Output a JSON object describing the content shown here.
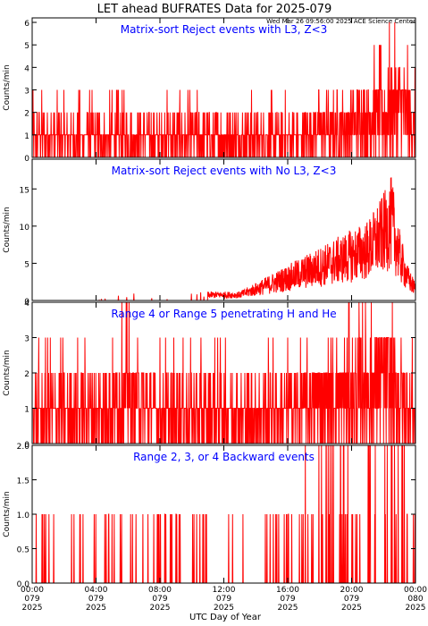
{
  "header": {
    "title": "LET ahead BUFRATES Data for 2025-079",
    "timestamp": "Wed Mar 26 09:56:00 2025 ACE Science Center"
  },
  "colors": {
    "trace": "#ff0000",
    "panel_title": "#0000ff",
    "axis": "#000000"
  },
  "x_axis": {
    "label": "UTC Day of Year",
    "ticks": [
      {
        "hour": 0,
        "lines": [
          "00:00",
          "079",
          "2025"
        ]
      },
      {
        "hour": 4,
        "lines": [
          "04:00",
          "079",
          "2025"
        ]
      },
      {
        "hour": 8,
        "lines": [
          "08:00",
          "079",
          "2025"
        ]
      },
      {
        "hour": 12,
        "lines": [
          "12:00",
          "079",
          "2025"
        ]
      },
      {
        "hour": 16,
        "lines": [
          "16:00",
          "079",
          "2025"
        ]
      },
      {
        "hour": 20,
        "lines": [
          "20:00",
          "079",
          "2025"
        ]
      },
      {
        "hour": 24,
        "lines": [
          "00:00",
          "080",
          "2025"
        ]
      }
    ]
  },
  "chart_data": [
    {
      "type": "line",
      "title": "Matrix-sort Reject events with L3, Z<3",
      "ylabel": "Counts/min",
      "ylim": [
        0,
        6.2
      ],
      "yticks": [
        0,
        1,
        2,
        3,
        4,
        5,
        6
      ],
      "ytick_labels": [
        "0",
        "1",
        "2",
        "3",
        "4",
        "5",
        "6"
      ],
      "x_units": "hours of day 079",
      "series": [
        {
          "x": [
            0,
            1,
            2,
            3,
            4,
            5,
            6,
            7,
            8,
            9,
            10,
            11,
            12,
            13,
            14,
            15,
            16,
            17,
            18,
            19,
            20,
            21,
            22,
            23,
            24
          ],
          "values": [
            2,
            2,
            2,
            2,
            2,
            2,
            2,
            2,
            2,
            2,
            2,
            2,
            2,
            2,
            2,
            2,
            2,
            2,
            3,
            3,
            3,
            4,
            4,
            5,
            3
          ]
        }
      ]
    },
    {
      "type": "line",
      "title": "Matrix-sort Reject events with No L3, Z<3",
      "ylabel": "Counts/min",
      "ylim": [
        0,
        19
      ],
      "yticks": [
        0,
        5,
        10,
        15
      ],
      "ytick_labels": [
        "0",
        "5",
        "10",
        "15"
      ],
      "x_units": "hours of day 079",
      "series": [
        {
          "x": [
            0,
            2,
            4,
            6,
            8,
            10,
            12,
            13,
            14,
            15,
            16,
            17,
            18,
            19,
            20,
            21,
            22,
            22.5,
            23,
            23.5,
            24
          ],
          "values": [
            0,
            0,
            0,
            1,
            0,
            1,
            1,
            1,
            2,
            3,
            4,
            5,
            6,
            7,
            8,
            9,
            12,
            14,
            8,
            4,
            2
          ]
        }
      ]
    },
    {
      "type": "line",
      "title": "Range 4 or Range 5 penetrating H and He",
      "ylabel": "Counts/min",
      "ylim": [
        0,
        4
      ],
      "yticks": [
        0,
        1,
        2,
        3,
        4
      ],
      "ytick_labels": [
        "0",
        "1",
        "2",
        "3",
        "4"
      ],
      "x_units": "hours of day 079",
      "series": [
        {
          "x": [
            0,
            2,
            4,
            6,
            8,
            10,
            12,
            14,
            16,
            18,
            20,
            22,
            24
          ],
          "values": [
            2,
            2,
            2,
            3,
            2,
            2,
            2,
            2,
            2,
            3,
            3,
            4,
            2
          ]
        }
      ]
    },
    {
      "type": "line",
      "title": "Range 2, 3, or 4 Backward events",
      "ylabel": "Counts/min",
      "ylim": [
        0,
        2
      ],
      "yticks": [
        0,
        0.5,
        1.0,
        1.5,
        2.0
      ],
      "ytick_labels": [
        "0.0",
        "0.5",
        "1.0",
        "1.5",
        "2.0"
      ],
      "x_units": "hours of day 079",
      "series": [
        {
          "x": [
            0,
            2,
            4,
            6,
            8,
            10,
            12,
            14,
            16,
            17,
            18,
            19,
            20,
            21,
            22,
            23,
            24
          ],
          "values": [
            1,
            0,
            1,
            1,
            1,
            1,
            1,
            0,
            1,
            1,
            2,
            2,
            2,
            2,
            2,
            2,
            1
          ]
        }
      ]
    }
  ]
}
